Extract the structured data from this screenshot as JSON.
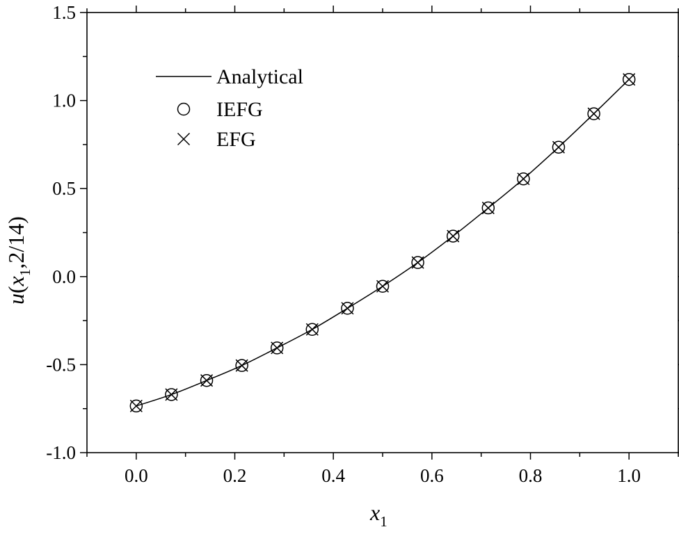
{
  "chart_data": {
    "type": "line",
    "title": "",
    "xlabel": {
      "var": "x",
      "sub": "1"
    },
    "ylabel": {
      "func": "u",
      "open": "(",
      "var": "x",
      "sub": "1",
      "rest": ",2/14)"
    },
    "xlim": [
      -0.1,
      1.1
    ],
    "ylim": [
      -1.0,
      1.5
    ],
    "xticks": [
      0.0,
      0.2,
      0.4,
      0.6,
      0.8,
      1.0
    ],
    "xtick_labels": [
      "0.0",
      "0.2",
      "0.4",
      "0.6",
      "0.8",
      "1.0"
    ],
    "yticks": [
      -1.0,
      -0.5,
      0.0,
      0.5,
      1.0,
      1.5
    ],
    "ytick_labels": [
      "-1.0",
      "-0.5",
      "0.0",
      "0.5",
      "1.0",
      "1.5"
    ],
    "grid": false,
    "legend_position": "top-left",
    "colors": {
      "line": "#000000",
      "marker": "#000000",
      "axis": "#000000"
    },
    "series": [
      {
        "name": "Analytical",
        "style": "line",
        "x": [
          0.0,
          0.0714,
          0.1429,
          0.2143,
          0.2857,
          0.3571,
          0.4286,
          0.5,
          0.5714,
          0.6429,
          0.7143,
          0.7857,
          0.8571,
          0.9286,
          1.0
        ],
        "y": [
          -0.735,
          -0.67,
          -0.59,
          -0.505,
          -0.405,
          -0.3,
          -0.18,
          -0.055,
          0.08,
          0.23,
          0.39,
          0.555,
          0.735,
          0.925,
          1.12
        ]
      },
      {
        "name": "IEFG",
        "style": "circle",
        "x": [
          0.0,
          0.0714,
          0.1429,
          0.2143,
          0.2857,
          0.3571,
          0.4286,
          0.5,
          0.5714,
          0.6429,
          0.7143,
          0.7857,
          0.8571,
          0.9286,
          1.0
        ],
        "y": [
          -0.735,
          -0.67,
          -0.59,
          -0.505,
          -0.405,
          -0.3,
          -0.18,
          -0.055,
          0.08,
          0.23,
          0.39,
          0.555,
          0.735,
          0.925,
          1.12
        ]
      },
      {
        "name": "EFG",
        "style": "cross",
        "x": [
          0.0,
          0.0714,
          0.1429,
          0.2143,
          0.2857,
          0.3571,
          0.4286,
          0.5,
          0.5714,
          0.6429,
          0.7143,
          0.7857,
          0.8571,
          0.9286,
          1.0
        ],
        "y": [
          -0.735,
          -0.67,
          -0.59,
          -0.505,
          -0.405,
          -0.3,
          -0.18,
          -0.055,
          0.08,
          0.23,
          0.39,
          0.555,
          0.735,
          0.925,
          1.12
        ]
      }
    ]
  }
}
